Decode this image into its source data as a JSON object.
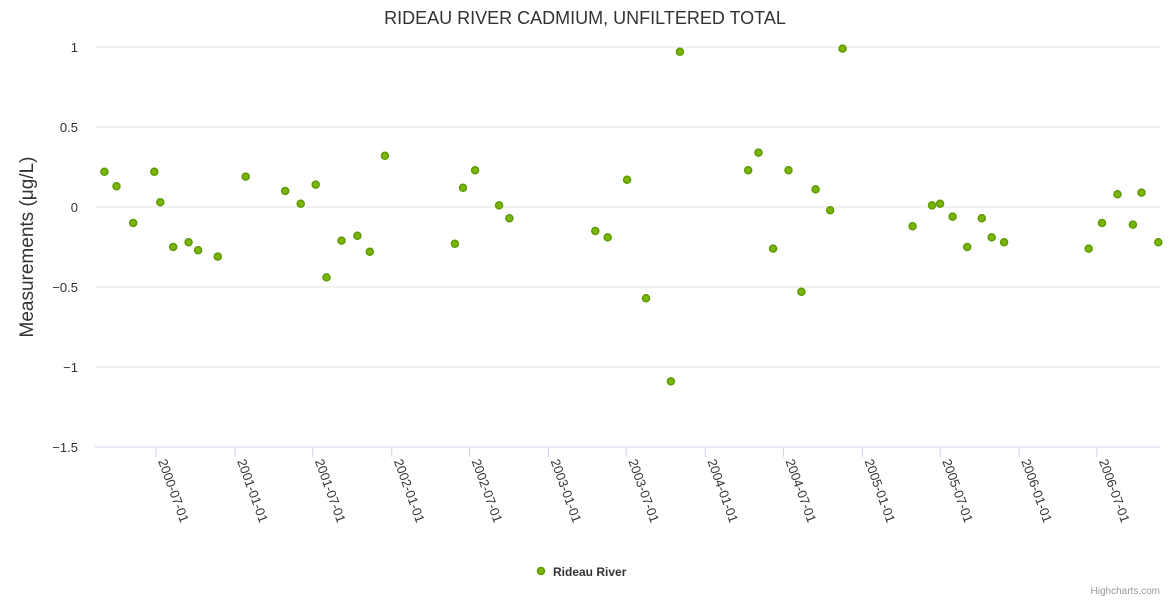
{
  "chart_data": {
    "type": "scatter",
    "title": "RIDEAU RIVER CADMIUM, UNFILTERED TOTAL",
    "ylabel": "Measurements (μg/L)",
    "xlabel": "",
    "ylim": [
      -1.5,
      1
    ],
    "y_ticks": [
      1,
      0.5,
      0,
      -0.5,
      -1,
      -1.5
    ],
    "y_tick_labels": [
      "1",
      "0.5",
      "0",
      "−0.5",
      "−1",
      "−1.5"
    ],
    "x_range": [
      "2000-02-10",
      "2006-11-25"
    ],
    "x_ticks": [
      "2000-07-01",
      "2001-01-01",
      "2001-07-01",
      "2002-01-01",
      "2002-07-01",
      "2003-01-01",
      "2003-07-01",
      "2004-01-01",
      "2004-07-01",
      "2005-01-01",
      "2005-07-01",
      "2006-01-01",
      "2006-07-01"
    ],
    "grid": true,
    "legend": "bottom-center",
    "point_color": "#5c9c00",
    "point_fill": "#7cb50a",
    "series": [
      {
        "name": "Rideau River",
        "points": [
          {
            "x": "2000-03-03",
            "y": 0.22
          },
          {
            "x": "2000-03-31",
            "y": 0.13
          },
          {
            "x": "2000-05-09",
            "y": -0.1
          },
          {
            "x": "2000-06-27",
            "y": 0.22
          },
          {
            "x": "2000-07-11",
            "y": 0.03
          },
          {
            "x": "2000-08-10",
            "y": -0.25
          },
          {
            "x": "2000-09-15",
            "y": -0.22
          },
          {
            "x": "2000-10-07",
            "y": -0.27
          },
          {
            "x": "2000-11-22",
            "y": -0.31
          },
          {
            "x": "2001-01-26",
            "y": 0.19
          },
          {
            "x": "2001-04-28",
            "y": 0.1
          },
          {
            "x": "2001-06-03",
            "y": 0.02
          },
          {
            "x": "2001-07-08",
            "y": 0.14
          },
          {
            "x": "2001-08-02",
            "y": -0.44
          },
          {
            "x": "2001-09-06",
            "y": -0.21
          },
          {
            "x": "2001-10-13",
            "y": -0.18
          },
          {
            "x": "2001-11-11",
            "y": -0.28
          },
          {
            "x": "2001-12-16",
            "y": 0.32
          },
          {
            "x": "2002-05-28",
            "y": -0.23
          },
          {
            "x": "2002-06-16",
            "y": 0.12
          },
          {
            "x": "2002-07-14",
            "y": 0.23
          },
          {
            "x": "2002-09-08",
            "y": 0.01
          },
          {
            "x": "2002-10-02",
            "y": -0.07
          },
          {
            "x": "2003-04-20",
            "y": -0.15
          },
          {
            "x": "2003-05-19",
            "y": -0.19
          },
          {
            "x": "2003-07-03",
            "y": 0.17
          },
          {
            "x": "2003-08-16",
            "y": -0.57
          },
          {
            "x": "2003-10-13",
            "y": -1.09
          },
          {
            "x": "2003-11-03",
            "y": 0.97
          },
          {
            "x": "2004-04-10",
            "y": 0.23
          },
          {
            "x": "2004-05-04",
            "y": 0.34
          },
          {
            "x": "2004-06-07",
            "y": -0.26
          },
          {
            "x": "2004-07-13",
            "y": 0.23
          },
          {
            "x": "2004-08-12",
            "y": -0.53
          },
          {
            "x": "2004-09-14",
            "y": 0.11
          },
          {
            "x": "2004-10-18",
            "y": -0.02
          },
          {
            "x": "2004-11-16",
            "y": 0.99
          },
          {
            "x": "2005-04-28",
            "y": -0.12
          },
          {
            "x": "2005-06-12",
            "y": 0.01
          },
          {
            "x": "2005-07-01",
            "y": 0.02
          },
          {
            "x": "2005-07-30",
            "y": -0.06
          },
          {
            "x": "2005-09-02",
            "y": -0.25
          },
          {
            "x": "2005-10-06",
            "y": -0.07
          },
          {
            "x": "2005-10-29",
            "y": -0.19
          },
          {
            "x": "2005-11-27",
            "y": -0.22
          },
          {
            "x": "2006-06-12",
            "y": -0.26
          },
          {
            "x": "2006-07-13",
            "y": -0.1
          },
          {
            "x": "2006-08-18",
            "y": 0.08
          },
          {
            "x": "2006-09-23",
            "y": -0.11
          },
          {
            "x": "2006-10-13",
            "y": 0.09
          },
          {
            "x": "2006-11-21",
            "y": -0.22
          }
        ]
      }
    ]
  },
  "legend": {
    "label": "Rideau River"
  },
  "credits": "Highcharts.com"
}
